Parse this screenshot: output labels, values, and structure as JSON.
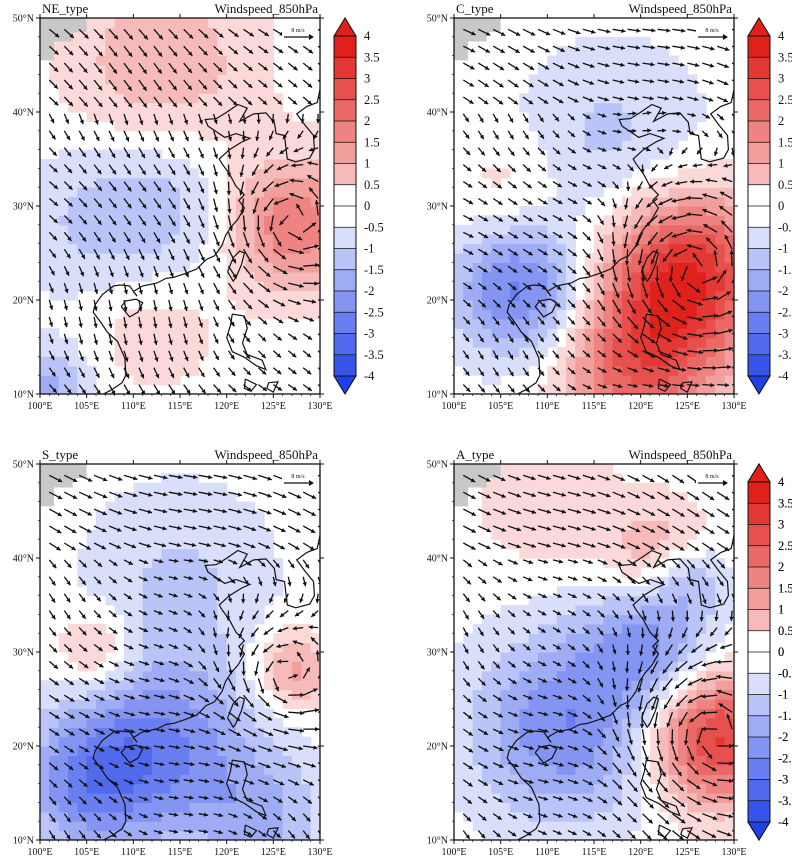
{
  "figure": {
    "colors": {
      "neg_max": "#1f3fe8",
      "neutral": "#ffffff",
      "pos_max": "#e0201b",
      "land_mask": "#c8c8c8",
      "vector": "#111111",
      "coast": "#111111"
    }
  },
  "chart_data": [
    {
      "type": "heatmap",
      "subtype": "vector-field-over-filled-contours",
      "title": "NE_type",
      "subtitle": "Windspeed_850hPa",
      "lon_range": [
        100,
        130
      ],
      "lat_range": [
        10,
        50
      ],
      "x_ticks": [
        "100°E",
        "105°E",
        "110°E",
        "115°E",
        "120°E",
        "125°E",
        "130°E"
      ],
      "y_ticks": [
        "10°N",
        "20°N",
        "30°N",
        "40°N",
        "50°N"
      ],
      "reference_vector": "8 m/s",
      "colorbar_levels": [
        "4",
        "3.5",
        "3",
        "2.5",
        "2",
        "1.5",
        "1",
        "0.5",
        "0",
        "-0.5",
        "-1",
        "-1.5",
        "-2",
        "-2.5",
        "-3",
        "-3.5",
        "-4"
      ],
      "field_centers": [
        {
          "lon": 113,
          "lat": 45,
          "value": 1.2,
          "radius": 7
        },
        {
          "lon": 127,
          "lat": 28,
          "value": 2.2,
          "radius": 5
        },
        {
          "lon": 112,
          "lat": 17,
          "value": 0.6,
          "radius": 5
        },
        {
          "lon": 113,
          "lat": 30,
          "value": -1.0,
          "radius": 6
        },
        {
          "lon": 104,
          "lat": 28,
          "value": -0.6,
          "radius": 6
        },
        {
          "lon": 101,
          "lat": 11,
          "value": -1.4,
          "radius": 3
        }
      ],
      "flow": {
        "base_u": 0.4,
        "base_v": -0.6,
        "vortex_lon": 127,
        "vortex_lat": 28,
        "vortex_strength": 0.6
      }
    },
    {
      "type": "heatmap",
      "subtype": "vector-field-over-filled-contours",
      "title": "C_type",
      "subtitle": "Windspeed_850hPa",
      "lon_range": [
        100,
        130
      ],
      "lat_range": [
        10,
        50
      ],
      "x_ticks": [
        "100°E",
        "105°E",
        "110°E",
        "115°E",
        "120°E",
        "125°E",
        "130°E"
      ],
      "y_ticks": [
        "10°N",
        "20°N",
        "30°N",
        "40°N",
        "50°N"
      ],
      "reference_vector": "8 m/s",
      "colorbar_levels": [
        "4",
        "3.5",
        "3",
        "2.5",
        "2",
        "1.5",
        "1",
        "0.5",
        "0",
        "-0.5",
        "-1",
        "-1.5",
        "-2",
        "-2.5",
        "-3",
        "-3.5",
        "-4"
      ],
      "field_centers": [
        {
          "lon": 125,
          "lat": 23,
          "value": 3.6,
          "radius": 6
        },
        {
          "lon": 120,
          "lat": 13,
          "value": 2.6,
          "radius": 6
        },
        {
          "lon": 107,
          "lat": 21,
          "value": -2.4,
          "radius": 5
        },
        {
          "lon": 117,
          "lat": 37,
          "value": -0.9,
          "radius": 7
        },
        {
          "lon": 106,
          "lat": 32,
          "value": 0.6,
          "radius": 4
        }
      ],
      "flow": {
        "base_u": 0.5,
        "base_v": -0.2,
        "vortex_lon": 126,
        "vortex_lat": 23,
        "vortex_strength": 1.4
      }
    },
    {
      "type": "heatmap",
      "subtype": "vector-field-over-filled-contours",
      "title": "S_type",
      "subtitle": "Windspeed_850hPa",
      "lon_range": [
        100,
        130
      ],
      "lat_range": [
        10,
        50
      ],
      "x_ticks": [
        "100°E",
        "105°E",
        "110°E",
        "115°E",
        "120°E",
        "125°E",
        "130°E"
      ],
      "y_ticks": [
        "10°N",
        "20°N",
        "30°N",
        "40°N",
        "50°N"
      ],
      "reference_vector": "8 m/s",
      "colorbar_levels": [
        "4",
        "3.5",
        "3",
        "2.5",
        "2",
        "1.5",
        "1",
        "0.5",
        "0",
        "-0.5",
        "-1",
        "-1.5",
        "-2",
        "-2.5",
        "-3",
        "-3.5",
        "-4"
      ],
      "field_centers": [
        {
          "lon": 113,
          "lat": 20,
          "value": -2.2,
          "radius": 7
        },
        {
          "lon": 105,
          "lat": 16,
          "value": -1.8,
          "radius": 5
        },
        {
          "lon": 115,
          "lat": 38,
          "value": -0.8,
          "radius": 7
        },
        {
          "lon": 106,
          "lat": 30,
          "value": 1.3,
          "radius": 3
        },
        {
          "lon": 127,
          "lat": 28,
          "value": 1.5,
          "radius": 3
        },
        {
          "lon": 124,
          "lat": 12,
          "value": -1.2,
          "radius": 5
        }
      ],
      "flow": {
        "base_u": 0.6,
        "base_v": -0.3,
        "vortex_lon": 126,
        "vortex_lat": 27,
        "vortex_strength": 0.4
      }
    },
    {
      "type": "heatmap",
      "subtype": "vector-field-over-filled-contours",
      "title": "A_type",
      "subtitle": "Windspeed_850hPa",
      "lon_range": [
        100,
        130
      ],
      "lat_range": [
        10,
        50
      ],
      "x_ticks": [
        "100°E",
        "105°E",
        "110°E",
        "115°E",
        "120°E",
        "125°E",
        "130°E"
      ],
      "y_ticks": [
        "10°N",
        "20°N",
        "30°N",
        "40°N",
        "50°N"
      ],
      "reference_vector": "8 m/s",
      "colorbar_levels": [
        "4",
        "3.5",
        "3",
        "2.5",
        "2",
        "1.5",
        "1",
        "0.5",
        "0",
        "-0.5",
        "-1",
        "-1.5",
        "-2",
        "-2.5",
        "-3",
        "-3.5",
        "-4"
      ],
      "field_centers": [
        {
          "lon": 128,
          "lat": 21,
          "value": 3.5,
          "radius": 5
        },
        {
          "lon": 122,
          "lat": 40,
          "value": 1.5,
          "radius": 4
        },
        {
          "lon": 112,
          "lat": 22,
          "value": -2.2,
          "radius": 7
        },
        {
          "lon": 121,
          "lat": 31,
          "value": -1.8,
          "radius": 5
        },
        {
          "lon": 125,
          "lat": 38,
          "value": -1.4,
          "radius": 3
        },
        {
          "lon": 110,
          "lat": 46,
          "value": 0.7,
          "radius": 5
        }
      ],
      "flow": {
        "base_u": 0.5,
        "base_v": -0.4,
        "vortex_lon": 128,
        "vortex_lat": 21,
        "vortex_strength": 1.3
      }
    }
  ]
}
